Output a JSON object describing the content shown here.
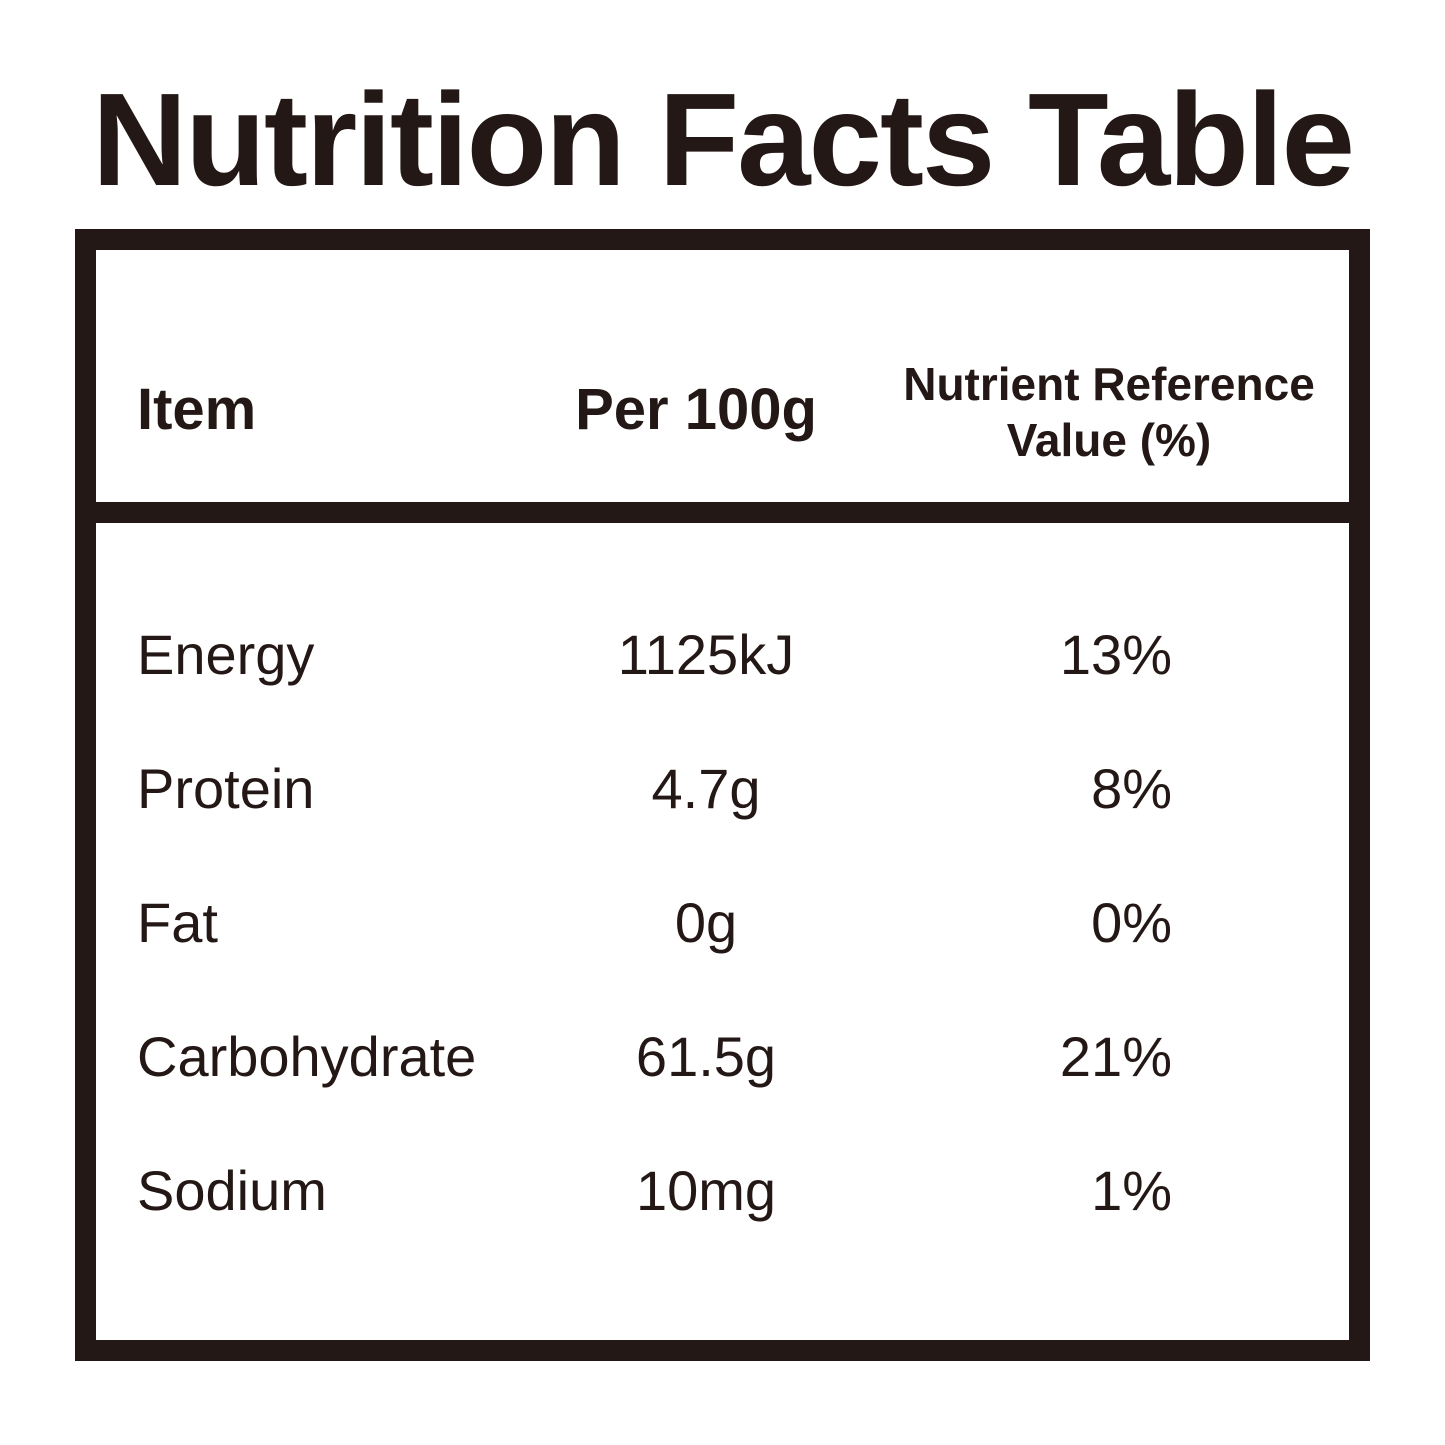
{
  "title": "Nutrition Facts Table",
  "table": {
    "headers": {
      "item": "Item",
      "per": "Per 100g",
      "nrv": "Nutrient Reference Value (%)"
    },
    "rows": [
      {
        "item": "Energy",
        "per": "1125kJ",
        "nrv": "13%"
      },
      {
        "item": "Protein",
        "per": "4.7g",
        "nrv": "8%"
      },
      {
        "item": "Fat",
        "per": "0g",
        "nrv": "0%"
      },
      {
        "item": "Carbohydrate",
        "per": "61.5g",
        "nrv": "21%"
      },
      {
        "item": "Sodium",
        "per": "10mg",
        "nrv": "1%"
      }
    ]
  }
}
